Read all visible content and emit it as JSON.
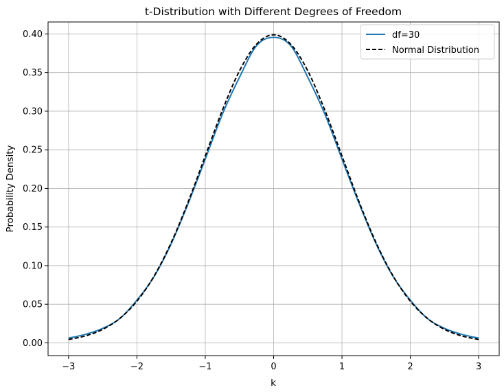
{
  "chart_data": {
    "type": "line",
    "title": "t-Distribution with Different Degrees of Freedom",
    "xlabel": "k",
    "ylabel": "Probability Density",
    "xlim": [
      -3.3,
      3.3
    ],
    "ylim": [
      -0.0165,
      0.4155
    ],
    "xticks": [
      -3,
      -2,
      -1,
      0,
      1,
      2,
      3
    ],
    "xtick_labels": [
      "−3",
      "−2",
      "−1",
      "0",
      "1",
      "2",
      "3"
    ],
    "yticks": [
      0.0,
      0.05,
      0.1,
      0.15,
      0.2,
      0.25,
      0.3,
      0.35,
      0.4
    ],
    "ytick_labels": [
      "0.00",
      "0.05",
      "0.10",
      "0.15",
      "0.20",
      "0.25",
      "0.30",
      "0.35",
      "0.40"
    ],
    "grid": true,
    "legend_position": "top-right",
    "x": [
      -3.0,
      -2.75,
      -2.5,
      -2.25,
      -2.0,
      -1.75,
      -1.5,
      -1.25,
      -1.0,
      -0.75,
      -0.5,
      -0.25,
      0.0,
      0.25,
      0.5,
      0.75,
      1.0,
      1.25,
      1.5,
      1.75,
      2.0,
      2.25,
      2.5,
      2.75,
      3.0
    ],
    "series": [
      {
        "name": "df=30",
        "color": "#1f77b4",
        "style": "solid",
        "values": [
          0.0062,
          0.0111,
          0.0188,
          0.0315,
          0.0553,
          0.0857,
          0.1281,
          0.1806,
          0.2379,
          0.296,
          0.3438,
          0.3848,
          0.3956,
          0.3848,
          0.3438,
          0.296,
          0.2379,
          0.1806,
          0.1281,
          0.0857,
          0.0553,
          0.0315,
          0.0188,
          0.0111,
          0.0062
        ]
      },
      {
        "name": "Normal Distribution",
        "color": "#000000",
        "style": "dashed",
        "values": [
          0.0044,
          0.0091,
          0.0175,
          0.0317,
          0.054,
          0.0863,
          0.1295,
          0.1826,
          0.242,
          0.3011,
          0.3521,
          0.3867,
          0.3989,
          0.3867,
          0.3521,
          0.3011,
          0.242,
          0.1826,
          0.1295,
          0.0863,
          0.054,
          0.0317,
          0.0175,
          0.0091,
          0.0044
        ]
      }
    ]
  }
}
